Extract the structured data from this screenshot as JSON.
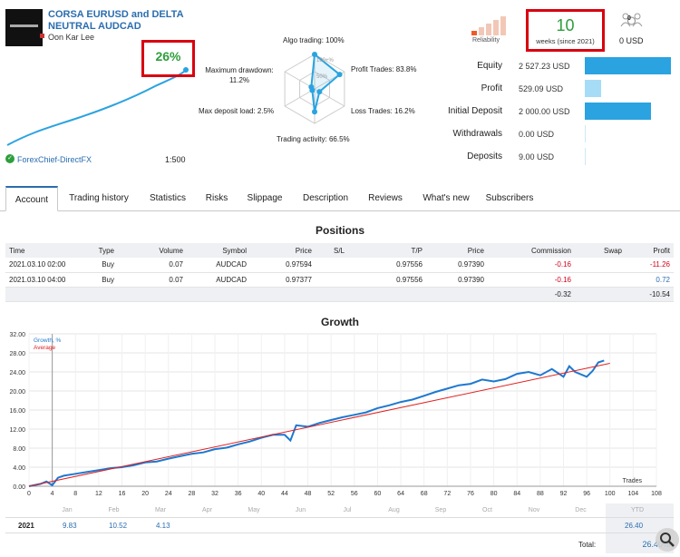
{
  "header": {
    "signal_title": "CORSA EURUSD and DELTA NEUTRAL AUDCAD",
    "author": "Oon Kar Lee",
    "growth_pct": "26%",
    "broker": "ForexChief-DirectFX",
    "leverage": "1:500"
  },
  "radar": {
    "algo_trading": "Algo trading: 100%",
    "profit_trades": "Profit Trades: 83.8%",
    "loss_trades": "Loss Trades: 16.2%",
    "trading_activity": "Trading activity: 66.5%",
    "max_deposit_load": "Max deposit load: 2.5%",
    "max_drawdown": "Maximum drawdown: 11.2%",
    "ring_100": "100+%",
    "ring_50": "50%",
    "values": {
      "algo": 1.0,
      "profit": 0.838,
      "loss": 0.162,
      "activity": 0.665,
      "deposit_load": 0.025,
      "drawdown": 0.112
    }
  },
  "reliability": {
    "label": "Reliability",
    "weeks": "10",
    "weeks_label": "weeks (since 2021)",
    "subscribers_count": "0",
    "subscribers_usd": "0 USD",
    "bars_filled": 1
  },
  "stats": [
    {
      "label": "Equity",
      "value": "2 527.23 USD",
      "fraction": 1.0,
      "color": "#2aa3e0"
    },
    {
      "label": "Profit",
      "value": "529.09 USD",
      "fraction": 0.19,
      "color": "#a6dcf5"
    },
    {
      "label": "Initial Deposit",
      "value": "2 000.00 USD",
      "fraction": 0.77,
      "color": "#2aa3e0"
    },
    {
      "label": "Withdrawals",
      "value": "0.00 USD",
      "fraction": 0.0,
      "color": "#2aa3e0"
    },
    {
      "label": "Deposits",
      "value": "9.00 USD",
      "fraction": 0.0,
      "color": "#2aa3e0"
    }
  ],
  "tabs": [
    {
      "label": "Account",
      "active": true
    },
    {
      "label": "Trading history"
    },
    {
      "label": "Statistics"
    },
    {
      "label": "Risks"
    },
    {
      "label": "Slippage"
    },
    {
      "label": "Description"
    },
    {
      "label": "Reviews"
    },
    {
      "label": "What's new"
    },
    {
      "label": "Subscribers"
    }
  ],
  "positions": {
    "title": "Positions",
    "columns": [
      "Time",
      "Type",
      "Volume",
      "Symbol",
      "Price",
      "S/L",
      "T/P",
      "Price",
      "Commission",
      "Swap",
      "Profit"
    ],
    "rows": [
      {
        "time": "2021.03.10 02:00",
        "type": "Buy",
        "volume": "0.07",
        "symbol": "AUDCAD",
        "price": "0.97594",
        "sl": "",
        "tp": "0.97556",
        "price2": "0.97390",
        "commission": "-0.16",
        "swap": "",
        "profit": "-11.26"
      },
      {
        "time": "2021.03.10 04:00",
        "type": "Buy",
        "volume": "0.07",
        "symbol": "AUDCAD",
        "price": "0.97377",
        "sl": "",
        "tp": "0.97556",
        "price2": "0.97390",
        "commission": "-0.16",
        "swap": "",
        "profit": "0.72"
      }
    ],
    "total": {
      "commission": "-0.32",
      "profit": "-10.54"
    }
  },
  "growth": {
    "title": "Growth",
    "trades_label": "Trades",
    "year": "2021",
    "months": [
      "Jan",
      "Feb",
      "Mar",
      "Apr",
      "May",
      "Jun",
      "Jul",
      "Aug",
      "Sep",
      "Oct",
      "Nov",
      "Dec",
      "YTD"
    ],
    "month_values": [
      "9.83",
      "10.52",
      "4.13",
      "",
      "",
      "",
      "",
      "",
      "",
      "",
      "",
      "",
      "26.40"
    ],
    "total_label": "Total:",
    "total_value": "26.40%"
  },
  "chart_data": {
    "type": "line",
    "title": "Growth",
    "xlabel": "Trades",
    "ylabel": "",
    "xlim": [
      0,
      108
    ],
    "ylim": [
      0,
      32
    ],
    "x_ticks": [
      0,
      4,
      8,
      12,
      16,
      20,
      24,
      28,
      32,
      36,
      40,
      44,
      48,
      52,
      56,
      60,
      64,
      68,
      72,
      76,
      80,
      84,
      88,
      92,
      96,
      100,
      104,
      108
    ],
    "y_ticks": [
      "0.00",
      "4.00",
      "8.00",
      "12.00",
      "16.00",
      "20.00",
      "24.00",
      "28.00",
      "32.00"
    ],
    "legend": [
      "Growth, %",
      "Average"
    ],
    "series": [
      {
        "name": "Growth, %",
        "color": "#1e78d0",
        "x": [
          0,
          2,
          3,
          4,
          5,
          6,
          8,
          10,
          12,
          14,
          16,
          18,
          20,
          22,
          24,
          26,
          28,
          30,
          32,
          34,
          36,
          38,
          40,
          42,
          44,
          45,
          46,
          48,
          50,
          52,
          54,
          56,
          58,
          60,
          62,
          64,
          66,
          68,
          70,
          72,
          74,
          76,
          78,
          80,
          82,
          84,
          86,
          88,
          90,
          92,
          93,
          94,
          96,
          97,
          98,
          99
        ],
        "y": [
          0,
          0.5,
          1.0,
          0.2,
          1.8,
          2.2,
          2.6,
          3.0,
          3.4,
          3.8,
          4.0,
          4.4,
          5.0,
          5.2,
          5.8,
          6.3,
          6.8,
          7.1,
          7.8,
          8.1,
          8.8,
          9.4,
          10.2,
          10.8,
          10.8,
          9.6,
          12.8,
          12.5,
          13.3,
          13.9,
          14.5,
          15.0,
          15.5,
          16.4,
          17.0,
          17.7,
          18.2,
          19.0,
          19.8,
          20.5,
          21.2,
          21.5,
          22.4,
          22.0,
          22.5,
          23.6,
          24.0,
          23.3,
          24.6,
          23.0,
          25.2,
          24.0,
          23.0,
          24.2,
          26.0,
          26.4
        ]
      },
      {
        "name": "Average",
        "color": "#e02020",
        "x": [
          0,
          100
        ],
        "y": [
          0,
          25.8
        ]
      }
    ]
  }
}
